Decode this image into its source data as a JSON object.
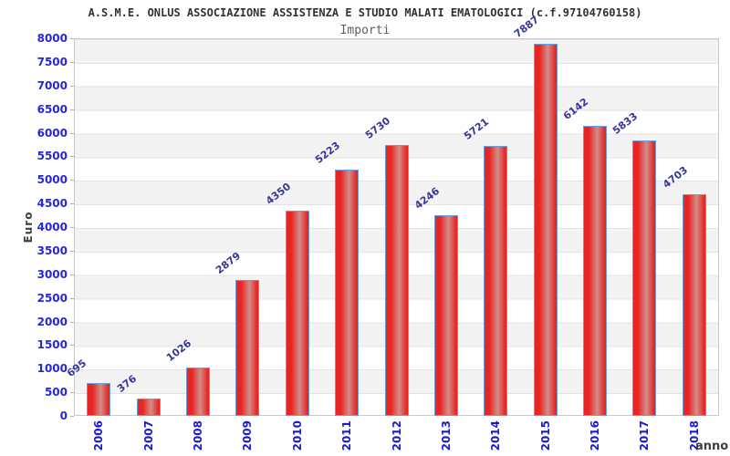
{
  "header": {
    "title": "A.S.M.E. ONLUS ASSOCIAZIONE ASSISTENZA E STUDIO MALATI EMATOLOGICI (c.f.97104760158)",
    "subtitle": "Importi"
  },
  "chart_data": {
    "type": "bar",
    "title": "A.S.M.E. ONLUS ASSOCIAZIONE ASSISTENZA E STUDIO MALATI EMATOLOGICI (c.f.97104760158)",
    "subtitle": "Importi",
    "categories": [
      "2006",
      "2007",
      "2008",
      "2009",
      "2010",
      "2011",
      "2012",
      "2013",
      "2014",
      "2015",
      "2016",
      "2017",
      "2018"
    ],
    "values": [
      695,
      376,
      1026,
      2879,
      4350,
      5223,
      5730,
      4246,
      5721,
      7887,
      6142,
      5833,
      4703
    ],
    "xlabel": "anno",
    "ylabel": "Euro",
    "ylim": [
      0,
      8000
    ],
    "ytick_step": 500,
    "grid": "horizontal alternating bands of 500 with light gridlines",
    "legend": "none",
    "colors": {
      "bar_fill": "#e82522",
      "bar_highlight": "#d18d8a",
      "bar_border": "#63a0dd",
      "value_label": "#35359c",
      "y_tick_label": "#2727d8",
      "x_tick_label": "#1a1ad1",
      "axis_title": "#3f3f3f",
      "band": "#f3f3f3",
      "grid_line": "#e3e3e3",
      "plot_frame": "#c9c9c9",
      "title_text": "#323232",
      "subtitle_text": "#5f5f5f"
    }
  }
}
